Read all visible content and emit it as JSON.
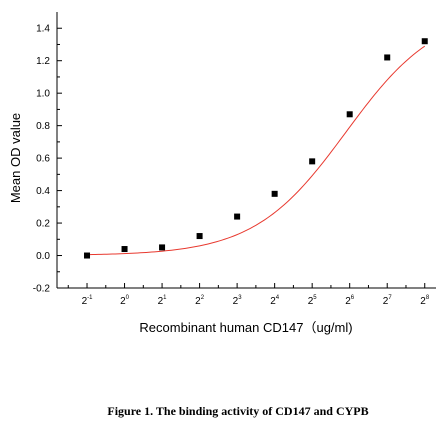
{
  "figure": {
    "caption": "Figure 1. The binding activity of CD147 and CYPB"
  },
  "chart_data": {
    "type": "scatter",
    "title": "",
    "xlabel": "Recombinant human  CD147（ug/ml)",
    "ylabel": "Mean OD value",
    "x_scale": "log2",
    "x_tick_exponents": [
      -1,
      0,
      1,
      2,
      3,
      4,
      5,
      6,
      7,
      8
    ],
    "x_tick_base": "2",
    "xlim_exponent": [
      -1.8,
      8.3
    ],
    "ylim": [
      -0.2,
      1.5
    ],
    "y_ticks": [
      -0.2,
      0.0,
      0.2,
      0.4,
      0.6,
      0.8,
      1.0,
      1.2,
      1.4
    ],
    "y_tick_labels": [
      "-0.2",
      "0.0",
      "0.2",
      "0.4",
      "0.6",
      "0.8",
      "1.0",
      "1.2",
      "1.4"
    ],
    "grid": false,
    "series": [
      {
        "marker": "square",
        "color": "#000000",
        "points": [
          {
            "x_exponent": -1,
            "y": 0.0
          },
          {
            "x_exponent": 0,
            "y": 0.04
          },
          {
            "x_exponent": 1,
            "y": 0.05
          },
          {
            "x_exponent": 2,
            "y": 0.12
          },
          {
            "x_exponent": 3,
            "y": 0.24
          },
          {
            "x_exponent": 4,
            "y": 0.38
          },
          {
            "x_exponent": 5,
            "y": 0.58
          },
          {
            "x_exponent": 6,
            "y": 0.87
          },
          {
            "x_exponent": 7,
            "y": 1.22
          },
          {
            "x_exponent": 8,
            "y": 1.32
          }
        ]
      }
    ],
    "fit_curve": {
      "color": "#e8392f",
      "model": "logistic",
      "bottom": 0.0,
      "top": 1.52,
      "midpoint_exponent": 5.9,
      "slope": 0.82
    }
  }
}
